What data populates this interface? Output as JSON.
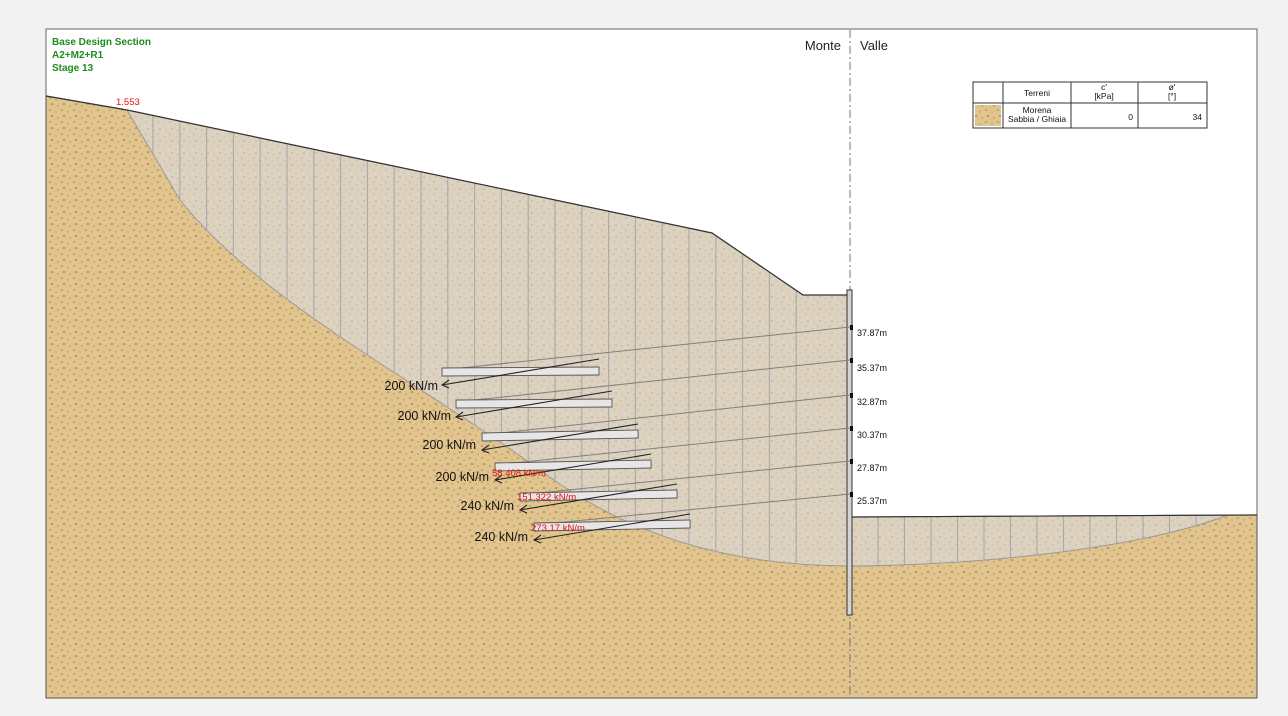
{
  "section_header": {
    "line1": "Base Design Section",
    "line2": "A2+M2+R1",
    "line3": "Stage 13"
  },
  "safety_factor": "1.553",
  "side_labels": {
    "left": "Monte",
    "right": "Valle"
  },
  "legend_table": {
    "headers": [
      "Terreni",
      "c'\n[kPa]",
      "ø'\n[°]"
    ],
    "rows": [
      {
        "name": "Morena\nSabbia / Ghiaia",
        "c": "0",
        "phi": "34"
      }
    ]
  },
  "anchor_elevations": [
    "37.87m",
    "35.37m",
    "32.87m",
    "30.37m",
    "27.87m",
    "25.37m"
  ],
  "anchor_loads": [
    "200 kN/m",
    "200 kN/m",
    "200 kN/m",
    "200 kN/m",
    "240 kN/m",
    "240 kN/m"
  ],
  "anchor_results": [
    "",
    "",
    "",
    "58.408 kN/m",
    "151.322 kN/m",
    "273.17 kN/m"
  ],
  "colors": {
    "soil": "#e2c58e",
    "sliding_mass": "#ddd2bf",
    "slice_lines": "#a9a9a9",
    "header_text": "#1e8c1e",
    "result_text": "#e01010"
  }
}
